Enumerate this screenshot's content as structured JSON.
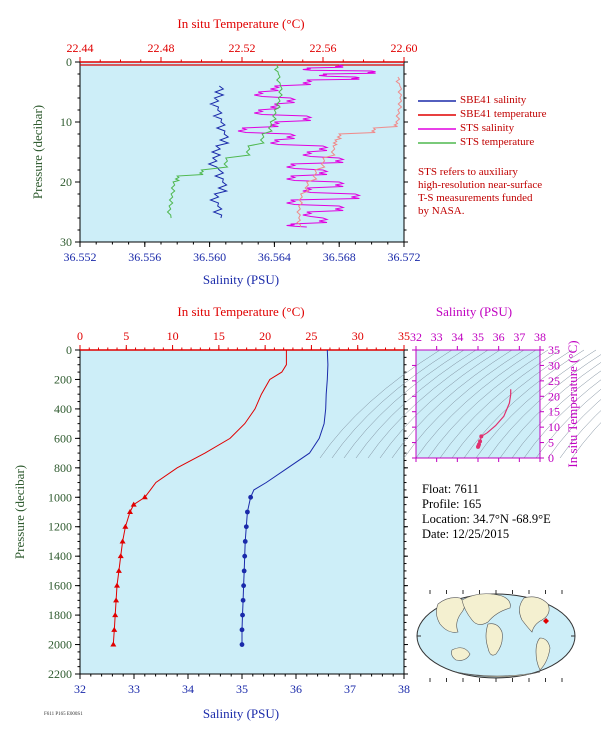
{
  "colors": {
    "plot_bg": "#cdeef8",
    "red": "#e00000",
    "blue": "#1a2aaa",
    "magenta": "#e000e0",
    "green": "#4fb84f",
    "pink": "#f08a8a",
    "dark_label": "#2e5a2e"
  },
  "legend": {
    "items": [
      {
        "label": "SBE41 salinity",
        "color": "#1a2aaa"
      },
      {
        "label": "SBE41 temperature",
        "color": "#e00000"
      },
      {
        "label": "STS salinity",
        "color": "#e000e0"
      },
      {
        "label": "STS temperature",
        "color": "#4fb84f"
      }
    ],
    "note_lines": [
      "STS refers to auxiliary",
      "high-resolution near-surface",
      "T-S measurements funded",
      "by NASA."
    ]
  },
  "float_info": {
    "float": "Float:  7611",
    "profile": "Profile:  165",
    "location": "Location:  34.7°N  -68.9°E",
    "date": "Date:  12/25/2015"
  },
  "footer_code": "F611 P165 E000S1",
  "chart_data": [
    {
      "type": "line",
      "name": "near-surface profile",
      "title_top": "In situ Temperature (°C)",
      "xlabel": "Salinity (PSU)",
      "ylabel": "Pressure (decibar)",
      "temp_ticks": [
        "22.44",
        "22.48",
        "22.52",
        "22.56",
        "22.60"
      ],
      "temp_range": [
        22.44,
        22.6
      ],
      "sal_ticks": [
        "36.552",
        "36.556",
        "36.560",
        "36.564",
        "36.568",
        "36.572"
      ],
      "sal_range": [
        36.552,
        36.572
      ],
      "p_ticks": [
        "0",
        "10",
        "20",
        "30"
      ],
      "p_range": [
        0,
        30
      ],
      "series": [
        {
          "name": "SBE41 salinity",
          "axis": "salinity",
          "color": "#1a2aaa",
          "p": [
            4,
            6,
            8,
            10,
            12,
            14,
            16,
            18,
            20,
            22,
            24,
            26
          ],
          "v": [
            36.5606,
            36.5603,
            36.5605,
            36.5607,
            36.5609,
            36.5604,
            36.5602,
            36.5606,
            36.5608,
            36.5603,
            36.5605,
            36.5607
          ]
        },
        {
          "name": "SBE41 temperature",
          "axis": "temperature",
          "color": "#e00000",
          "p": [
            0.5
          ],
          "v": [
            22.44
          ]
        },
        {
          "name": "STS salinity",
          "axis": "salinity",
          "color": "#e000e0",
          "p": [
            0.5,
            1,
            1.5,
            2,
            2.5,
            3,
            4,
            5,
            6,
            7,
            8,
            9,
            10,
            11,
            12,
            13,
            14,
            15,
            16,
            17,
            18,
            19,
            20,
            21,
            22,
            23,
            24,
            25,
            26,
            27,
            27.5
          ],
          "v": [
            36.568,
            36.566,
            36.57,
            36.567,
            36.569,
            36.566,
            36.564,
            36.563,
            36.565,
            36.564,
            36.563,
            36.566,
            36.564,
            36.562,
            36.565,
            36.564,
            36.567,
            36.566,
            36.568,
            36.565,
            36.567,
            36.565,
            36.568,
            36.566,
            36.569,
            36.565,
            36.568,
            36.566,
            36.567,
            36.565,
            36.566
          ]
        },
        {
          "name": "STS temperature",
          "axis": "temperature",
          "color": "#4fb84f",
          "p": [
            0.5,
            2,
            4,
            6,
            8,
            10,
            12,
            14,
            16,
            18,
            19,
            20,
            22,
            24,
            26
          ],
          "v": [
            22.537,
            22.538,
            22.539,
            22.538,
            22.536,
            22.534,
            22.53,
            22.523,
            22.512,
            22.5,
            22.488,
            22.486,
            22.485,
            22.484,
            22.485
          ]
        },
        {
          "name": "STS temperature (warm)",
          "axis": "temperature",
          "color": "#f08a8a",
          "p": [
            2.5,
            4,
            6,
            8,
            10,
            11,
            12,
            13,
            14,
            16,
            18,
            20,
            22,
            24,
            26,
            27.5
          ],
          "v": [
            22.597,
            22.598,
            22.598,
            22.597,
            22.596,
            22.585,
            22.568,
            22.566,
            22.565,
            22.56,
            22.556,
            22.552,
            22.549,
            22.548,
            22.548,
            22.549
          ]
        }
      ]
    },
    {
      "type": "line",
      "name": "full profile",
      "title_top": "In situ Temperature (°C)",
      "xlabel": "Salinity (PSU)",
      "ylabel": "Pressure (decibar)",
      "temp_ticks": [
        "0",
        "5",
        "10",
        "15",
        "20",
        "25",
        "30",
        "35"
      ],
      "temp_range": [
        0,
        35
      ],
      "sal_ticks": [
        "32",
        "33",
        "34",
        "35",
        "36",
        "37",
        "38"
      ],
      "sal_range": [
        32,
        38
      ],
      "p_ticks": [
        "0",
        "200",
        "400",
        "600",
        "800",
        "1000",
        "1200",
        "1400",
        "1600",
        "1800",
        "2000",
        "2200"
      ],
      "p_range": [
        0,
        2200
      ],
      "series": [
        {
          "name": "Temperature",
          "axis": "temperature",
          "color": "#e00000",
          "p": [
            0,
            100,
            150,
            200,
            300,
            400,
            500,
            600,
            700,
            800,
            900,
            950,
            1000,
            1050,
            1100,
            1200,
            1300,
            1400,
            1500,
            1600,
            1700,
            1800,
            1900,
            2000
          ],
          "v": [
            22.3,
            22.3,
            21.8,
            20.5,
            19.6,
            18.9,
            17.8,
            16.2,
            13.5,
            10.5,
            8.2,
            7.6,
            7.0,
            5.8,
            5.4,
            4.9,
            4.6,
            4.4,
            4.2,
            4.0,
            3.9,
            3.8,
            3.7,
            3.6
          ]
        },
        {
          "name": "Salinity",
          "axis": "salinity",
          "color": "#1a2aaa",
          "p": [
            0,
            100,
            200,
            300,
            400,
            500,
            600,
            700,
            800,
            900,
            950,
            1000,
            1100,
            1200,
            1300,
            1400,
            1500,
            1600,
            1700,
            1800,
            1900,
            2000
          ],
          "v": [
            36.58,
            36.59,
            36.58,
            36.56,
            36.55,
            36.52,
            36.43,
            36.25,
            35.85,
            35.45,
            35.22,
            35.16,
            35.1,
            35.08,
            35.06,
            35.05,
            35.04,
            35.03,
            35.02,
            35.01,
            35.0,
            35.0
          ]
        }
      ]
    },
    {
      "type": "scatter",
      "name": "T-S diagram",
      "xlabel": "Salinity (PSU)",
      "ylabel": "In situ Temperature (°C)",
      "x_ticks": [
        "32",
        "33",
        "34",
        "35",
        "36",
        "37",
        "38"
      ],
      "x_range": [
        32,
        38
      ],
      "y_ticks": [
        "0",
        "5",
        "10",
        "15",
        "20",
        "25",
        "30",
        "35"
      ],
      "y_range": [
        0,
        35
      ],
      "series": [
        {
          "name": "profile",
          "color": "#e0306e",
          "x": [
            35.0,
            35.02,
            35.05,
            35.1,
            35.16,
            35.45,
            35.85,
            36.25,
            36.52,
            36.58,
            36.58
          ],
          "y": [
            3.6,
            3.9,
            4.4,
            5.4,
            7.0,
            8.2,
            10.5,
            13.5,
            17.8,
            20.5,
            22.3
          ]
        }
      ]
    }
  ]
}
